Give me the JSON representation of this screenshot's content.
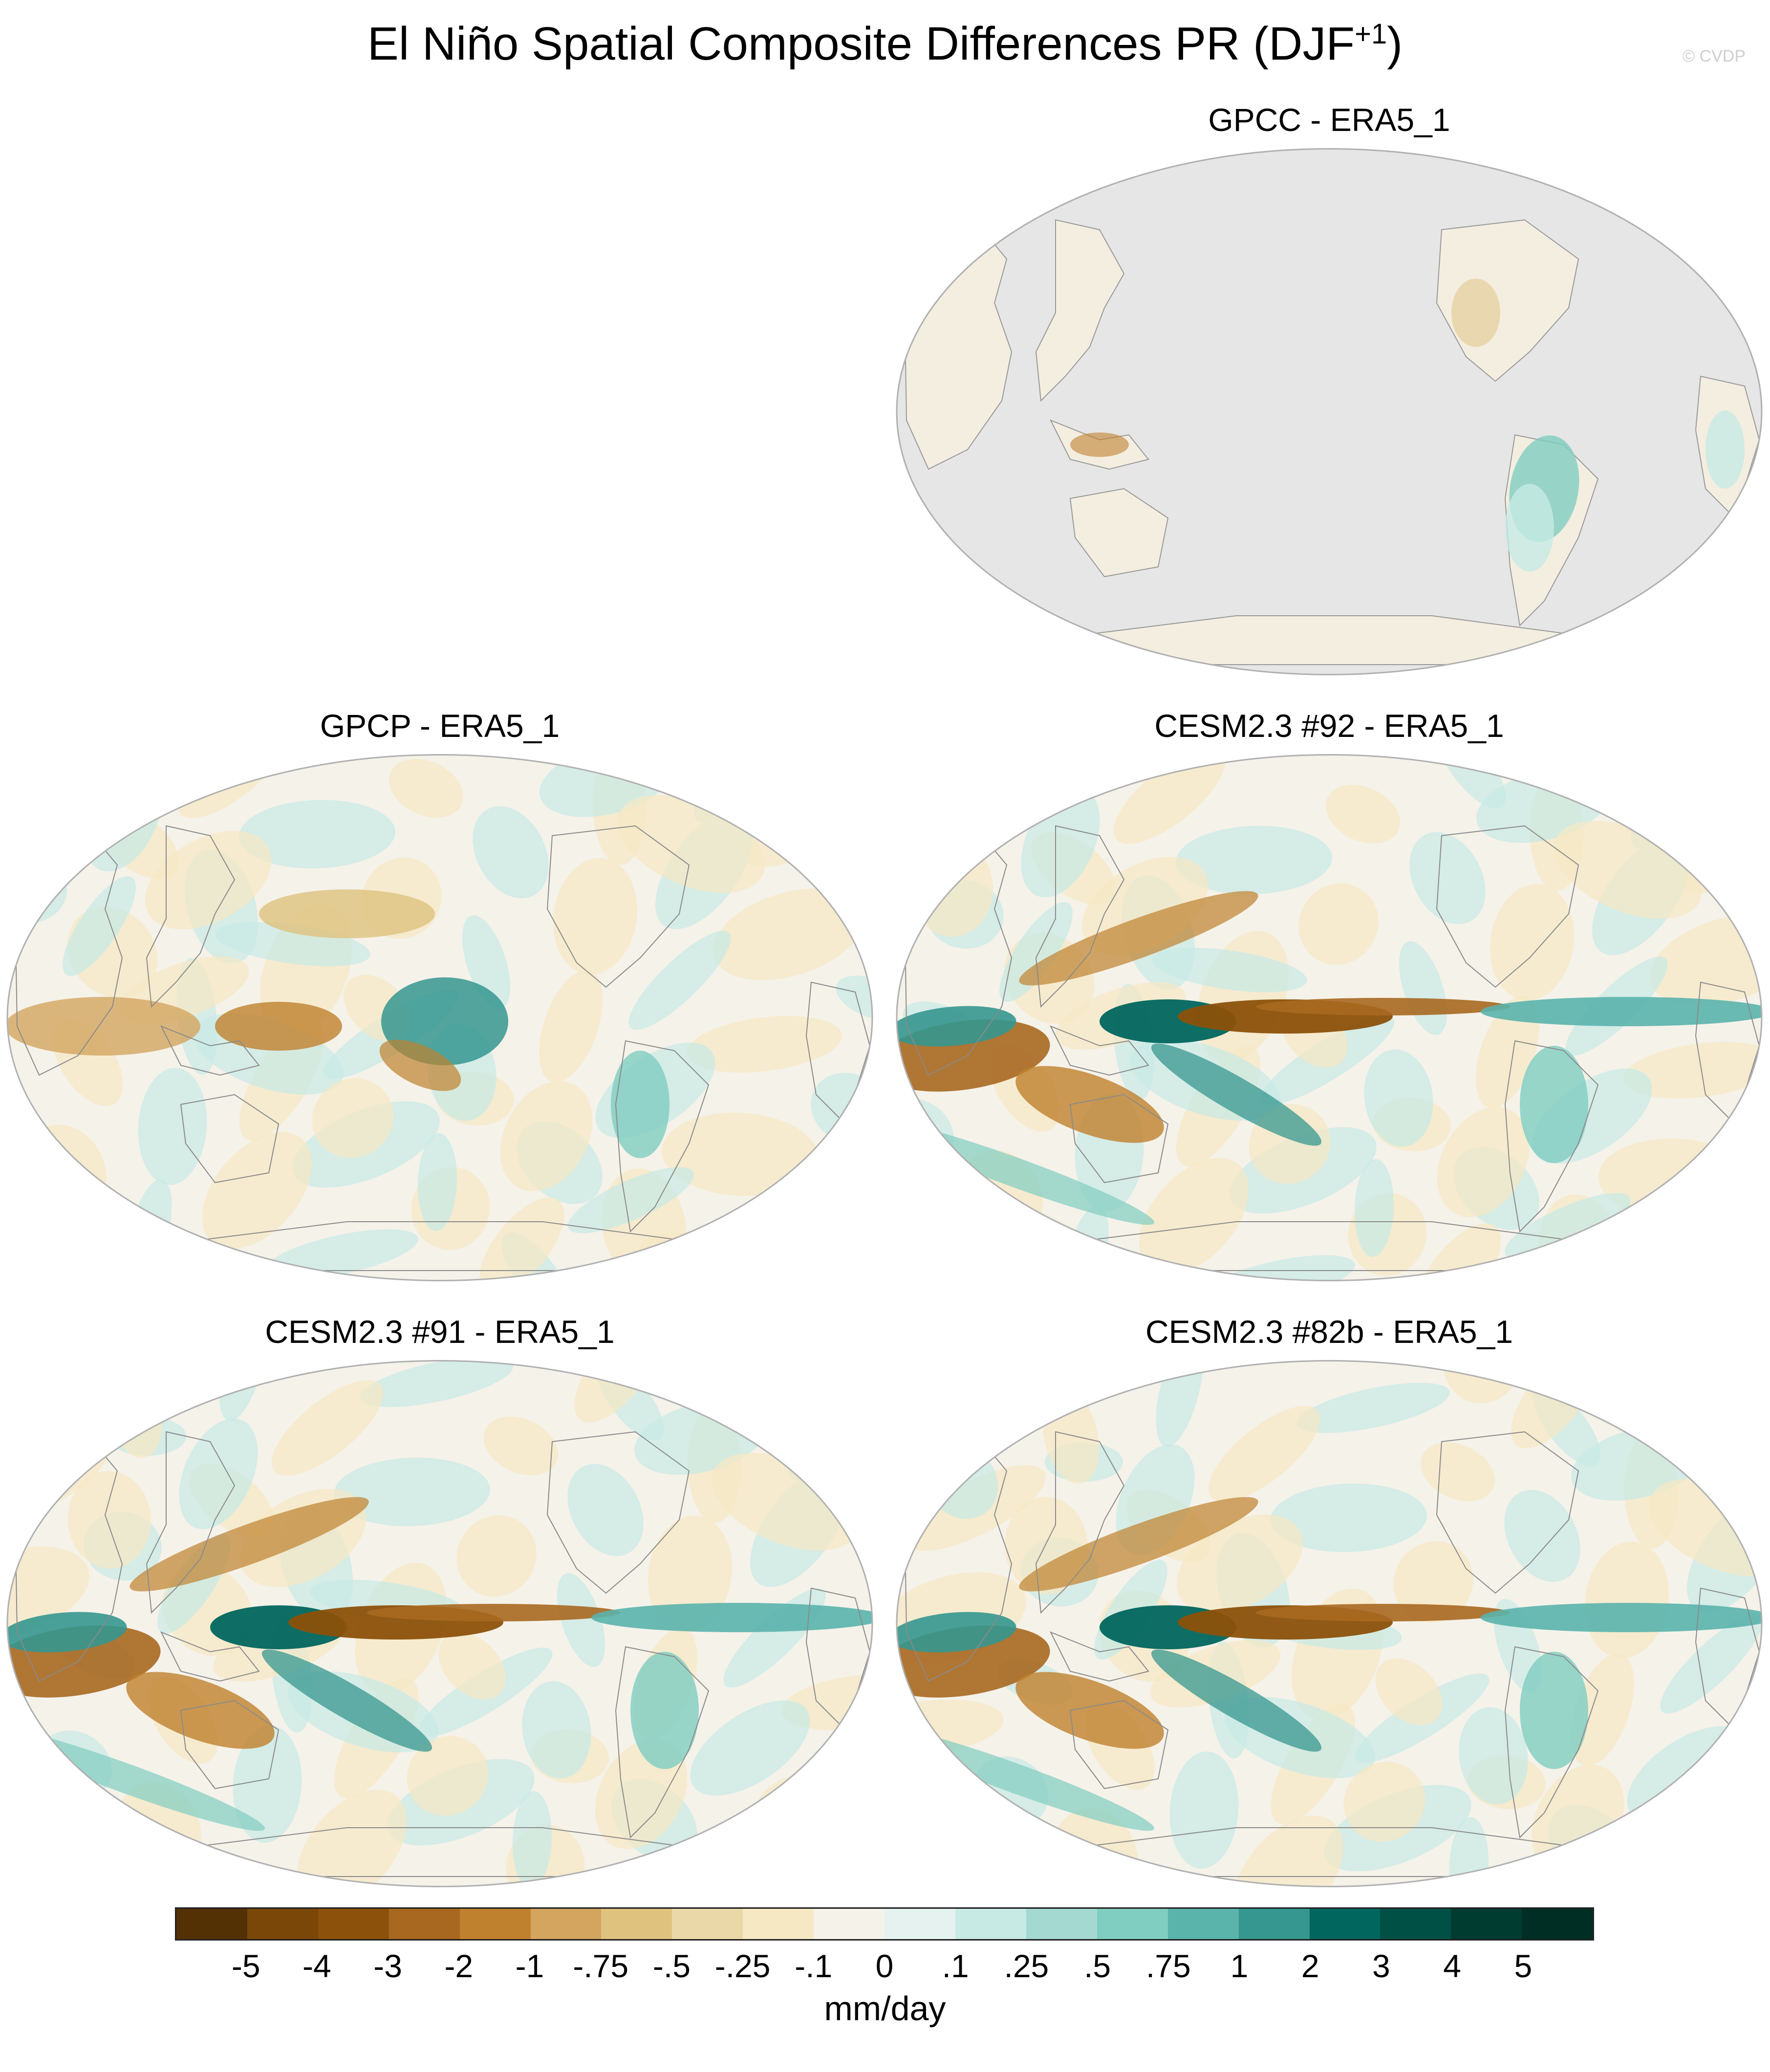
{
  "title": "El Niño Spatial Composite Differences PR (DJF",
  "title_sup": "+1",
  "title_close": ")",
  "copyright": "© CVDP",
  "panels": {
    "gpcc": "GPCC - ERA5_1",
    "gpcp": "GPCP - ERA5_1",
    "c92": "CESM2.3 #92 - ERA5_1",
    "c91": "CESM2.3 #91 - ERA5_1",
    "c82": "CESM2.3 #82b - ERA5_1"
  },
  "colorbar": {
    "units": "mm/day",
    "ticks": [
      "-5",
      "-4",
      "-3",
      "-2",
      "-1",
      "-.75",
      "-.5",
      "-.25",
      "-.1",
      "0",
      ".1",
      ".25",
      ".5",
      ".75",
      "1",
      "2",
      "3",
      "4",
      "5"
    ],
    "colors": [
      "#543005",
      "#7a4709",
      "#8c510a",
      "#a86820",
      "#bf812d",
      "#d3a55f",
      "#dfc27d",
      "#ebd8a9",
      "#f6e8c3",
      "#f5f2ea",
      "#e6f2ef",
      "#c7eae5",
      "#a3d9d1",
      "#80cdc1",
      "#5ab4ac",
      "#35978f",
      "#01665e",
      "#005046",
      "#003c30"
    ]
  }
}
